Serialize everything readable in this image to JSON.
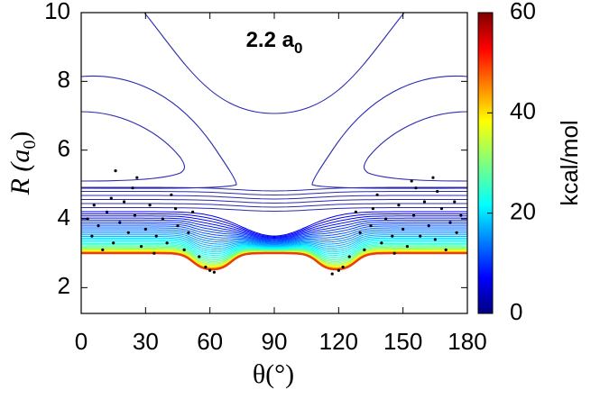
{
  "chart_data": {
    "type": "scatter",
    "title": "2.2 a",
    "title_subscript": "0",
    "xlabel": "θ(°)",
    "ylabel": "R (a",
    "ylabel_subscript": "0",
    "ylabel_end": ")",
    "xlim": [
      0,
      180
    ],
    "xticks": [
      0,
      30,
      60,
      90,
      120,
      150,
      180
    ],
    "ylim": [
      1.25,
      10
    ],
    "yticks": [
      2,
      4,
      6,
      8,
      10
    ],
    "colorbar": {
      "label": "kcal/mol",
      "zlim": [
        0,
        60
      ],
      "zticks": [
        0,
        20,
        40,
        60
      ]
    },
    "series": [
      {
        "color": "#000000",
        "x": [
          5,
          8,
          12,
          15,
          18,
          20,
          22,
          25,
          28,
          30,
          32,
          35,
          38,
          40,
          42,
          45,
          48,
          50,
          52,
          55,
          58,
          60,
          62,
          3,
          10,
          14,
          24,
          34,
          44,
          26,
          16,
          6,
          175,
          172,
          168,
          165,
          162,
          160,
          158,
          155,
          152,
          150,
          148,
          145,
          142,
          140,
          138,
          135,
          132,
          130,
          128,
          125,
          122,
          120,
          117,
          177,
          170,
          166,
          156,
          146,
          136,
          154,
          164,
          174
        ],
        "values": [
          3.5,
          3.8,
          4.2,
          3.3,
          3.9,
          4.5,
          3.6,
          4.1,
          3.2,
          3.7,
          4.4,
          3.5,
          4.0,
          3.3,
          4.7,
          3.8,
          3.1,
          3.6,
          4.2,
          2.9,
          2.6,
          2.5,
          2.45,
          4.0,
          3.1,
          4.6,
          4.9,
          3.0,
          4.3,
          5.2,
          5.4,
          4.4,
          3.6,
          3.9,
          4.3,
          3.4,
          3.8,
          4.5,
          3.5,
          4.1,
          3.2,
          3.7,
          4.4,
          3.5,
          4.0,
          3.3,
          4.7,
          3.8,
          3.1,
          3.6,
          4.2,
          2.9,
          2.6,
          2.5,
          2.4,
          4.1,
          3.1,
          4.8,
          4.9,
          3.0,
          4.3,
          5.1,
          5.2,
          4.5
        ]
      }
    ]
  }
}
